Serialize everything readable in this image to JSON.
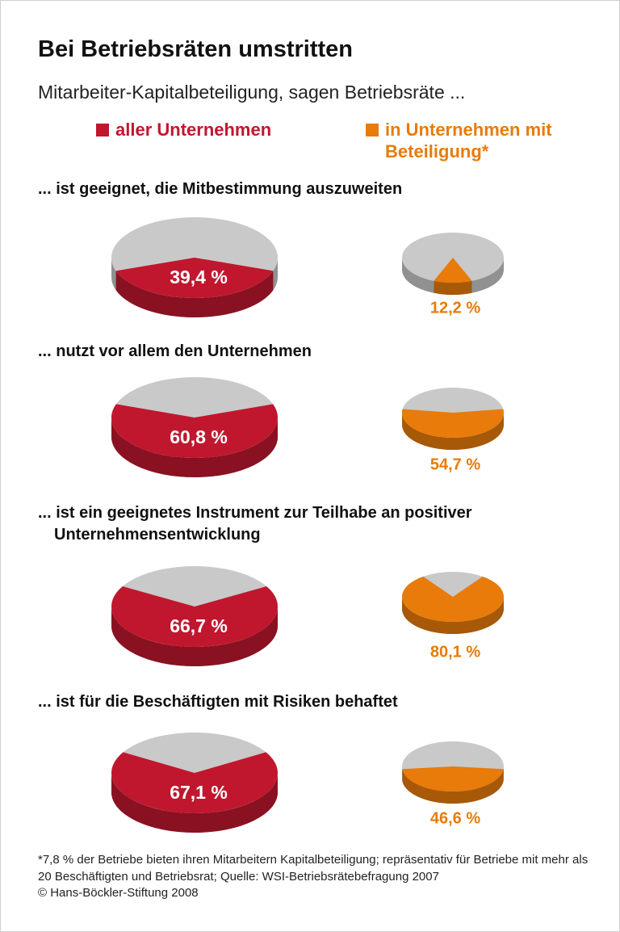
{
  "title": "Bei Betriebsräten umstritten",
  "subtitle": "Mitarbeiter-Kapitalbeteiligung, sagen Betriebsräte ...",
  "legend": [
    {
      "name": "aller Unternehmen",
      "color": "#c0172e"
    },
    {
      "name": "in Unternehmen mit Beteiligung*",
      "color": "#e87b0a"
    }
  ],
  "rest_color": "#c9c9c9",
  "chart_data": [
    {
      "type": "pie",
      "title": "... ist geeignet, die Mitbestimmung auszuweiten",
      "values": [
        39.4,
        12.2
      ],
      "value_labels": [
        "39,4 %",
        "12,2 %"
      ]
    },
    {
      "type": "pie",
      "title": "... nutzt vor allem den Unternehmen",
      "values": [
        60.8,
        54.7
      ],
      "value_labels": [
        "60,8 %",
        "54,7 %"
      ]
    },
    {
      "type": "pie",
      "title": "... ist ein geeignetes Instrument zur Teilhabe an positiver Unternehmensentwicklung",
      "values": [
        66.7,
        80.1
      ],
      "value_labels": [
        "66,7 %",
        "80,1 %"
      ]
    },
    {
      "type": "pie",
      "title": "... ist für die Beschäftigten mit Risiken behaftet",
      "values": [
        67.1,
        46.6
      ],
      "value_labels": [
        "67,1 %",
        "46,6 %"
      ]
    }
  ],
  "footnote": "*7,8 % der Betriebe bieten ihren Mitarbeitern Kapitalbeteiligung; repräsentativ für Betriebe mit mehr als 20 Beschäftigten und Betriebsrat; Quelle: WSI-Betriebsrätebefragung 2007",
  "copyright": "© Hans-Böckler-Stiftung 2008"
}
